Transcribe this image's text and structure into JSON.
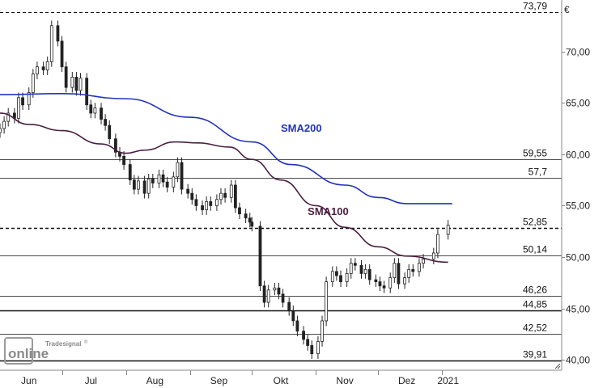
{
  "chart_data": {
    "type": "candlestick",
    "currency_label": "€",
    "y_axis": {
      "ylim": [
        39.0,
        75.0
      ],
      "ticks": [
        40,
        45,
        50,
        55,
        60,
        65,
        70
      ],
      "tick_labels": [
        "40,00",
        "45,00",
        "50,00",
        "55,00",
        "60,00",
        "65,00",
        "70,00"
      ],
      "position": "right"
    },
    "x_axis": {
      "month_labels": [
        {
          "label": "Jun",
          "date": "2020-06-15"
        },
        {
          "label": "Jul",
          "date": "2020-07-15"
        },
        {
          "label": "Aug",
          "date": "2020-08-15"
        },
        {
          "label": "Sep",
          "date": "2020-09-15"
        },
        {
          "label": "Okt",
          "date": "2020-10-15"
        },
        {
          "label": "Nov",
          "date": "2020-11-15"
        },
        {
          "label": "Dez",
          "date": "2020-12-15"
        },
        {
          "label": "2021",
          "date": "2021-01-04"
        }
      ],
      "month_separators": [
        "2020-07-01",
        "2020-08-01",
        "2020-09-01",
        "2020-10-01",
        "2020-11-01",
        "2020-12-01",
        "2021-01-01"
      ],
      "xlim": [
        "2020-06-01",
        "2021-02-28"
      ]
    },
    "levels": [
      {
        "value": 73.79,
        "label": "73,79",
        "style": "dashed"
      },
      {
        "value": 59.55,
        "label": "59,55",
        "style": "solid"
      },
      {
        "value": 57.7,
        "label": "57,7",
        "style": "solid"
      },
      {
        "value": 52.85,
        "label": "52,85",
        "style": "dashed"
      },
      {
        "value": 50.14,
        "label": "50,14",
        "style": "solid"
      },
      {
        "value": 46.26,
        "label": "46,26",
        "style": "solid"
      },
      {
        "value": 44.85,
        "label": "44,85",
        "style": "solid-thick"
      },
      {
        "value": 42.52,
        "label": "42,52",
        "style": "solid"
      },
      {
        "value": 39.91,
        "label": "39,91",
        "style": "solid-thick"
      }
    ],
    "close_series": [
      [
        "2020-06-01",
        62.5
      ],
      [
        "2020-06-03",
        63.2
      ],
      [
        "2020-06-05",
        64.0
      ],
      [
        "2020-06-08",
        63.5
      ],
      [
        "2020-06-10",
        65.5
      ],
      [
        "2020-06-12",
        64.8
      ],
      [
        "2020-06-15",
        66.0
      ],
      [
        "2020-06-17",
        67.8
      ],
      [
        "2020-06-19",
        68.5
      ],
      [
        "2020-06-22",
        68.2
      ],
      [
        "2020-06-24",
        69.0
      ],
      [
        "2020-06-26",
        72.5
      ],
      [
        "2020-06-29",
        71.0
      ],
      [
        "2020-07-01",
        68.5
      ],
      [
        "2020-07-03",
        66.5
      ],
      [
        "2020-07-06",
        67.5
      ],
      [
        "2020-07-08",
        66.2
      ],
      [
        "2020-07-10",
        67.4
      ],
      [
        "2020-07-13",
        64.8
      ],
      [
        "2020-07-15",
        64.0
      ],
      [
        "2020-07-17",
        64.5
      ],
      [
        "2020-07-20",
        63.4
      ],
      [
        "2020-07-22",
        62.8
      ],
      [
        "2020-07-24",
        61.5
      ],
      [
        "2020-07-27",
        60.2
      ],
      [
        "2020-07-29",
        59.8
      ],
      [
        "2020-07-31",
        59.0
      ],
      [
        "2020-08-03",
        57.5
      ],
      [
        "2020-08-05",
        56.6
      ],
      [
        "2020-08-07",
        57.4
      ],
      [
        "2020-08-10",
        56.2
      ],
      [
        "2020-08-12",
        57.6
      ],
      [
        "2020-08-14",
        57.2
      ],
      [
        "2020-08-17",
        58.0
      ],
      [
        "2020-08-19",
        57.3
      ],
      [
        "2020-08-21",
        56.8
      ],
      [
        "2020-08-24",
        57.8
      ],
      [
        "2020-08-26",
        59.2
      ],
      [
        "2020-08-28",
        56.6
      ],
      [
        "2020-08-31",
        56.2
      ],
      [
        "2020-09-02",
        55.6
      ],
      [
        "2020-09-04",
        55.0
      ],
      [
        "2020-09-07",
        54.6
      ],
      [
        "2020-09-09",
        55.4
      ],
      [
        "2020-09-11",
        55.0
      ],
      [
        "2020-09-14",
        55.6
      ],
      [
        "2020-09-16",
        56.2
      ],
      [
        "2020-09-18",
        55.8
      ],
      [
        "2020-09-21",
        57.0
      ],
      [
        "2020-09-23",
        54.8
      ],
      [
        "2020-09-25",
        54.2
      ],
      [
        "2020-09-28",
        53.8
      ],
      [
        "2020-09-30",
        53.4
      ],
      [
        "2020-10-01",
        53.0
      ],
      [
        "2020-10-05",
        47.2
      ],
      [
        "2020-10-07",
        45.6
      ],
      [
        "2020-10-09",
        46.8
      ],
      [
        "2020-10-12",
        47.0
      ],
      [
        "2020-10-14",
        46.4
      ],
      [
        "2020-10-16",
        45.6
      ],
      [
        "2020-10-19",
        44.8
      ],
      [
        "2020-10-21",
        43.8
      ],
      [
        "2020-10-23",
        42.8
      ],
      [
        "2020-10-26",
        42.0
      ],
      [
        "2020-10-28",
        41.4
      ],
      [
        "2020-10-30",
        40.6
      ],
      [
        "2020-11-02",
        41.8
      ],
      [
        "2020-11-04",
        43.8
      ],
      [
        "2020-11-06",
        47.6
      ],
      [
        "2020-11-09",
        48.6
      ],
      [
        "2020-11-11",
        48.2
      ],
      [
        "2020-11-13",
        47.6
      ],
      [
        "2020-11-16",
        48.4
      ],
      [
        "2020-11-18",
        49.4
      ],
      [
        "2020-11-20",
        49.2
      ],
      [
        "2020-11-23",
        48.4
      ],
      [
        "2020-11-25",
        48.8
      ],
      [
        "2020-11-27",
        47.8
      ],
      [
        "2020-11-30",
        47.6
      ],
      [
        "2020-12-02",
        47.2
      ],
      [
        "2020-12-04",
        47.0
      ],
      [
        "2020-12-07",
        48.0
      ],
      [
        "2020-12-09",
        49.4
      ],
      [
        "2020-12-11",
        47.4
      ],
      [
        "2020-12-14",
        48.0
      ],
      [
        "2020-12-16",
        48.8
      ],
      [
        "2020-12-18",
        48.6
      ],
      [
        "2020-12-21",
        49.4
      ],
      [
        "2020-12-23",
        49.8
      ],
      [
        "2020-12-28",
        50.4
      ],
      [
        "2020-12-30",
        52.2
      ],
      [
        "2021-01-04",
        53.1
      ]
    ],
    "series": [
      {
        "name": "SMA200",
        "color": "#2233bb",
        "points": [
          [
            "2020-06-01",
            65.8
          ],
          [
            "2020-07-01",
            65.9
          ],
          [
            "2020-08-01",
            65.4
          ],
          [
            "2020-09-01",
            63.6
          ],
          [
            "2020-10-01",
            61.2
          ],
          [
            "2020-10-20",
            59.0
          ],
          [
            "2020-11-15",
            57.0
          ],
          [
            "2020-12-01",
            55.8
          ],
          [
            "2020-12-15",
            55.2
          ],
          [
            "2021-01-06",
            55.2
          ]
        ]
      },
      {
        "name": "SMA100",
        "color": "#4a1f3f",
        "points": [
          [
            "2020-06-01",
            64.0
          ],
          [
            "2020-06-15",
            62.9
          ],
          [
            "2020-07-01",
            62.3
          ],
          [
            "2020-07-20",
            61.0
          ],
          [
            "2020-08-01",
            60.1
          ],
          [
            "2020-08-10",
            60.4
          ],
          [
            "2020-08-25",
            61.2
          ],
          [
            "2020-09-05",
            61.1
          ],
          [
            "2020-09-20",
            60.7
          ],
          [
            "2020-10-01",
            59.5
          ],
          [
            "2020-10-15",
            57.5
          ],
          [
            "2020-11-01",
            55.0
          ],
          [
            "2020-11-15",
            52.9
          ],
          [
            "2020-12-01",
            51.0
          ],
          [
            "2020-12-15",
            50.1
          ],
          [
            "2021-01-04",
            49.5
          ]
        ]
      }
    ],
    "legend_placement": "labels-on-lines",
    "grid": false
  },
  "logo": {
    "brand_text": "Tradesignal",
    "product_text": "online",
    "registered_mark": "®"
  }
}
